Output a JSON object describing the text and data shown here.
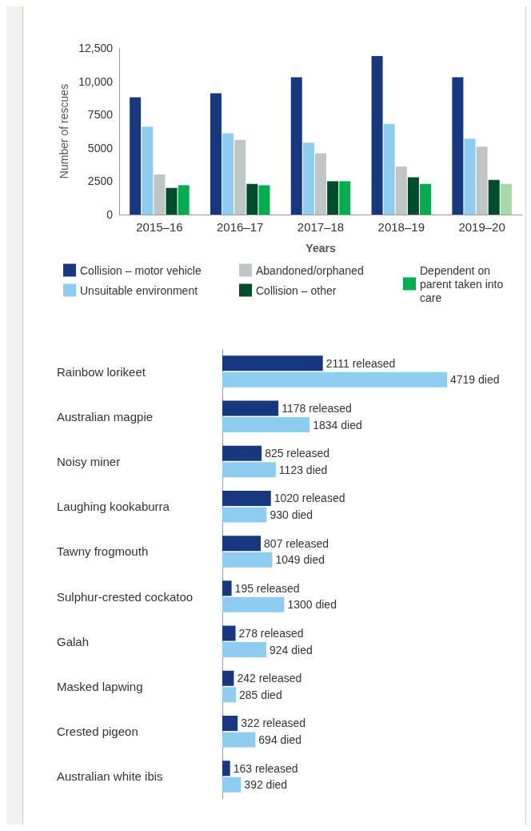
{
  "chart_data": [
    {
      "type": "bar",
      "categories": [
        "2015–16",
        "2016–17",
        "2017–18",
        "2018–19",
        "2019–20"
      ],
      "xlabel": "Years",
      "ylabel": "Number of rescues",
      "ylim": [
        0,
        12500
      ],
      "yticks": [
        0,
        2500,
        5000,
        7500,
        {
          "value": 10000,
          "label": "10,000"
        },
        {
          "value": 12500,
          "label": "12,500"
        }
      ],
      "grid": false,
      "legend": "bottom",
      "series": [
        {
          "name": "Collision – motor vehicle",
          "color": "#17387f",
          "values": [
            8800,
            9100,
            10300,
            11900,
            10300
          ]
        },
        {
          "name": "Unsuitable environment",
          "color": "#8fcdf0",
          "values": [
            6600,
            6100,
            5400,
            6800,
            5700
          ]
        },
        {
          "name": "Abandoned/orphaned",
          "color": "#bfc4c4",
          "values": [
            3000,
            5600,
            4600,
            3600,
            5100
          ]
        },
        {
          "name": "Collision – other",
          "color": "#004d2c",
          "values": [
            2000,
            2300,
            2500,
            2800,
            2600
          ]
        },
        {
          "name": "Dependent on parent taken into care",
          "color": "#00ae4f",
          "colors": [
            "#00ae4f",
            "#00ae4f",
            "#00ae4f",
            "#00ae4f",
            "#a9d8a8"
          ],
          "values": [
            2200,
            2200,
            2500,
            2300,
            2300
          ]
        }
      ]
    },
    {
      "type": "bar",
      "orientation": "horizontal",
      "tick_labels": "y",
      "categories": [
        "Rainbow lorikeet",
        "Australian magpie",
        "Noisy miner",
        "Laughing kookaburra",
        "Tawny frogmouth",
        "Sulphur-crested cockatoo",
        "Galah",
        "Masked lapwing",
        "Crested pigeon",
        "Australian white ibis"
      ],
      "series": [
        {
          "color": "#17387f",
          "values": [
            2111,
            1178,
            825,
            1020,
            807,
            195,
            278,
            242,
            322,
            163
          ],
          "value_labels": [
            "2111 released",
            "1178 released",
            "825 released",
            "1020 released",
            "807 released",
            "195 released",
            "278 released",
            "242 released",
            "322 released",
            "163 released"
          ]
        },
        {
          "color": "#8fcdf0",
          "values": [
            4719,
            1834,
            1123,
            930,
            1049,
            1300,
            924,
            285,
            694,
            392
          ],
          "value_labels": [
            "4719 died",
            "1834 died",
            "1123 died",
            "930 died",
            "1049 died",
            "1300 died",
            "924 died",
            "285 died",
            "694 died",
            "392 died"
          ]
        }
      ]
    }
  ]
}
